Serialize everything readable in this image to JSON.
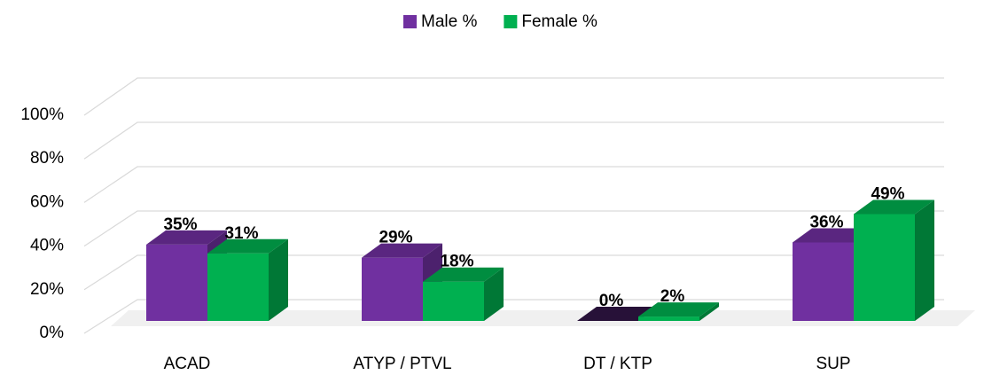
{
  "chart_data": {
    "type": "bar3d",
    "categories": [
      "ACAD",
      "ATYP / PTVL",
      "DT / KTP",
      "SUP"
    ],
    "series": [
      {
        "name": "Male %",
        "color": "#7030a0",
        "values": [
          35,
          29,
          0,
          36
        ],
        "value_labels": [
          "35%",
          "29%",
          "0%",
          "36%"
        ]
      },
      {
        "name": "Female %",
        "color": "#00b050",
        "values": [
          31,
          18,
          2,
          49
        ],
        "value_labels": [
          "31%",
          "18%",
          "2%",
          "49%"
        ]
      }
    ],
    "ylim": [
      0,
      100
    ],
    "yticks": [
      {
        "value": 0,
        "label": "0%"
      },
      {
        "value": 20,
        "label": "20%"
      },
      {
        "value": 40,
        "label": "40%"
      },
      {
        "value": 60,
        "label": "60%"
      },
      {
        "value": 80,
        "label": "80%"
      },
      {
        "value": 100,
        "label": "100%"
      }
    ],
    "grid": true,
    "legend": "top"
  }
}
